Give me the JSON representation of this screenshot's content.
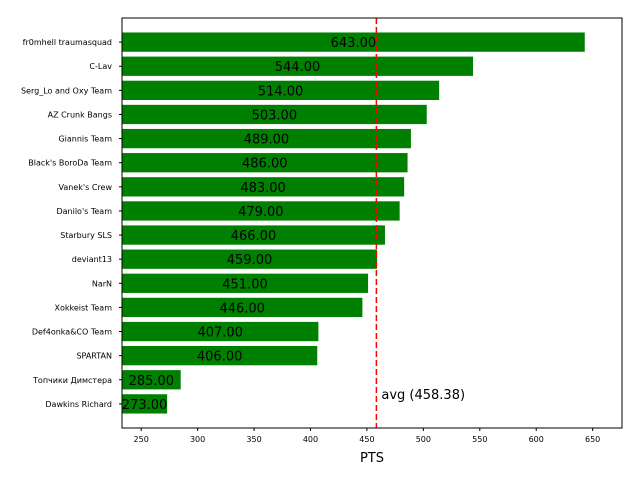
{
  "chart_data": {
    "type": "bar",
    "orientation": "horizontal",
    "categories": [
      "fr0mhell traumasquad",
      "C-Lav",
      "Serg_Lo and Oxy Team",
      "AZ Crunk Bangs",
      "Giannis Team",
      "Black's BoroDa Team",
      "Vanek's Crew",
      "Danilo's Team",
      "Starbury SLS",
      "deviant13",
      "NarN",
      "Xokkeist Team",
      "Def4onka&CO Team",
      "SPARTAN",
      "Топчики Димстера",
      "Dawkins Richard"
    ],
    "values": [
      643,
      544,
      514,
      503,
      489,
      486,
      483,
      479,
      466,
      459,
      451,
      446,
      407,
      406,
      285,
      273
    ],
    "value_labels": [
      "643.00",
      "544.00",
      "514.00",
      "503.00",
      "489.00",
      "486.00",
      "483.00",
      "479.00",
      "466.00",
      "459.00",
      "451.00",
      "446.00",
      "407.00",
      "406.00",
      "285.00",
      "273.00"
    ],
    "xlabel": "PTS",
    "ylabel": "",
    "title": "",
    "xlim": [
      233,
      676
    ],
    "xticks": [
      250,
      300,
      350,
      400,
      450,
      500,
      550,
      600,
      650
    ],
    "bar_color": "#008000",
    "average": {
      "value": 458.38,
      "label": "avg (458.38)",
      "color": "#ff0000",
      "style": "dashed"
    },
    "grid": false,
    "legend": "none"
  }
}
